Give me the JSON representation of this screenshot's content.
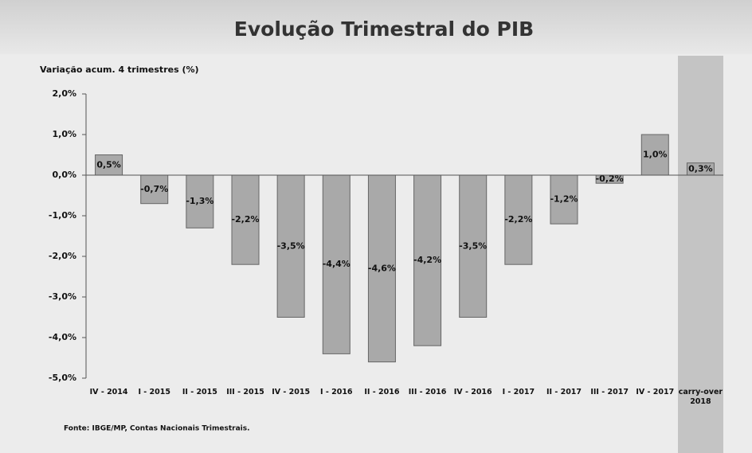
{
  "chart_data": {
    "type": "bar",
    "title": "Evolução Trimestral do PIB",
    "y_axis_label": "Variação acum. 4 trimestres (%)",
    "source": "Fonte: IBGE/MP, Contas Nacionais Trimestrais.",
    "categories": [
      "IV - 2014",
      "I - 2015",
      "II - 2015",
      "III - 2015",
      "IV - 2015",
      "I - 2016",
      "II - 2016",
      "III - 2016",
      "IV - 2016",
      "I - 2017",
      "II - 2017",
      "III - 2017",
      "IV - 2017",
      "carry-over\n2018"
    ],
    "values": [
      0.5,
      -0.7,
      -1.3,
      -2.2,
      -3.5,
      -4.4,
      -4.6,
      -4.2,
      -3.5,
      -2.2,
      -1.2,
      -0.2,
      1.0,
      0.3
    ],
    "value_labels": [
      "0,5%",
      "-0,7%",
      "-1,3%",
      "-2,2%",
      "-3,5%",
      "-4,4%",
      "-4,6%",
      "-4,2%",
      "-3,5%",
      "-2,2%",
      "-1,2%",
      "-0,2%",
      "1,0%",
      "0,3%"
    ],
    "color": "#a9a9a9",
    "ylim": [
      -5,
      2
    ],
    "yticks": [
      {
        "value": -5,
        "label": "-5,0%"
      },
      {
        "value": -4,
        "label": "-4,0%"
      },
      {
        "value": -3,
        "label": "-3,0%"
      },
      {
        "value": -2,
        "label": "-2,0%"
      },
      {
        "value": -1,
        "label": "-1,0%"
      },
      {
        "value": 0,
        "label": "0,0%"
      },
      {
        "value": 1,
        "label": "1,0%"
      },
      {
        "value": 2,
        "label": "2,0%"
      }
    ],
    "grid": false
  }
}
